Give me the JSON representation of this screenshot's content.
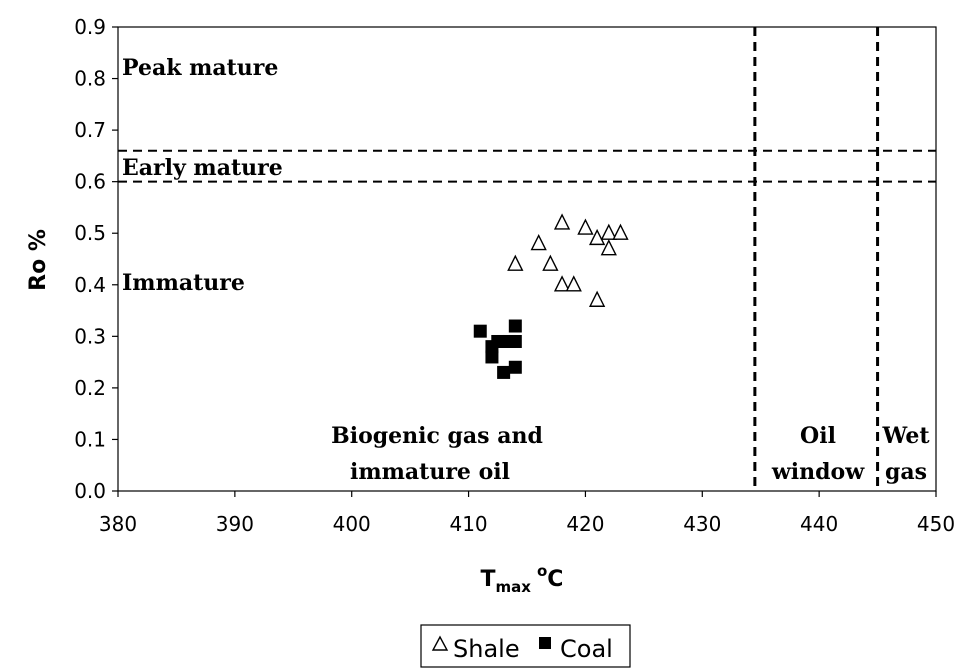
{
  "chart_data": {
    "type": "scatter",
    "xlabel": {
      "main": "T",
      "sub": "max",
      "sup": "o",
      "unit": "C"
    },
    "ylabel": "Ro %",
    "xlim": [
      380,
      450
    ],
    "ylim": [
      0,
      0.9
    ],
    "xticks": [
      "380",
      "390",
      "400",
      "410",
      "420",
      "430",
      "440",
      "450"
    ],
    "yticks": [
      "0.0",
      "0.1",
      "0.2",
      "0.3",
      "0.4",
      "0.5",
      "0.6",
      "0.7",
      "0.8",
      "0.9"
    ],
    "grid": false,
    "legend_position": "bottom",
    "series": [
      {
        "name": "Shale",
        "marker": "open-triangle",
        "color": "#000000",
        "points": [
          [
            414,
            0.44
          ],
          [
            416,
            0.48
          ],
          [
            417,
            0.44
          ],
          [
            418,
            0.52
          ],
          [
            418,
            0.4
          ],
          [
            419,
            0.4
          ],
          [
            420,
            0.51
          ],
          [
            421,
            0.49
          ],
          [
            421,
            0.37
          ],
          [
            422,
            0.5
          ],
          [
            422,
            0.47
          ],
          [
            423,
            0.5
          ]
        ]
      },
      {
        "name": "Coal",
        "marker": "filled-square",
        "color": "#000000",
        "points": [
          [
            411,
            0.31
          ],
          [
            412,
            0.28
          ],
          [
            412,
            0.26
          ],
          [
            412.5,
            0.29
          ],
          [
            413,
            0.29
          ],
          [
            413,
            0.23
          ],
          [
            413.5,
            0.29
          ],
          [
            414,
            0.32
          ],
          [
            414,
            0.29
          ],
          [
            414,
            0.24
          ]
        ]
      }
    ],
    "reference_lines": [
      {
        "orientation": "horizontal",
        "value": 0.66,
        "style": "dashed"
      },
      {
        "orientation": "horizontal",
        "value": 0.6,
        "style": "dashed"
      },
      {
        "orientation": "vertical",
        "value": 434.5,
        "style": "dashed"
      },
      {
        "orientation": "vertical",
        "value": 445,
        "style": "dashed"
      }
    ],
    "annotations": {
      "peak_mature": "Peak mature",
      "early_mature": "Early mature",
      "immature": "Immature",
      "biogenic_line1": "Biogenic gas and",
      "biogenic_line2": "immature oil",
      "oil_line1": "Oil",
      "oil_line2": "window",
      "wetgas_line1": "Wet",
      "wetgas_line2": "gas"
    }
  }
}
